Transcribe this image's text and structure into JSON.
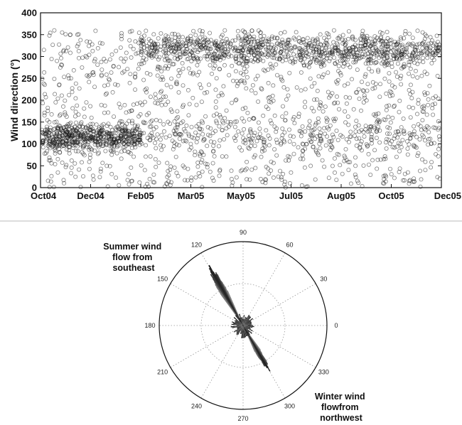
{
  "chart_data": [
    {
      "type": "scatter",
      "title": "",
      "xlabel": "",
      "ylabel": "Wind direction (°)",
      "ylim": [
        0,
        400
      ],
      "yticks": [
        0,
        50,
        100,
        150,
        200,
        250,
        300,
        350,
        400
      ],
      "xticks": [
        "Oct04",
        "Dec04",
        "Feb05",
        "Mar05",
        "May05",
        "Jul05",
        "Aug05",
        "Oct05",
        "Dec05"
      ],
      "marker": "open-circle",
      "marker_color": "#1a1a1a",
      "grid": false,
      "clusters": [
        {
          "x_start": "Oct04",
          "x_end": "Feb05",
          "center_deg": 115,
          "spread_deg": 15
        },
        {
          "x_start": "Feb05",
          "x_end": "Dec05",
          "center_deg": 315,
          "spread_deg": 18
        },
        {
          "x_start": "Feb05",
          "x_end": "Dec05",
          "center_deg": 120,
          "spread_deg": 25
        },
        {
          "x_start": "Oct04",
          "x_end": "Dec05",
          "center_deg": 200,
          "spread_deg": 80
        }
      ]
    },
    {
      "type": "polar-rose",
      "title": "",
      "angle_ticks": [
        "90",
        "60",
        "30",
        "0",
        "330",
        "300",
        "270",
        "240",
        "210",
        "180",
        "150",
        "120"
      ],
      "petals": [
        {
          "direction_deg": 120,
          "relative_length": 1.0,
          "direction_label": "Summer wind flow from southeast"
        },
        {
          "direction_deg": 300,
          "relative_length": 0.75,
          "direction_label": "Winter wind flow from northwest"
        }
      ],
      "petal_color": "#2b2b2b",
      "annotations": [
        {
          "id": "summer",
          "lines": [
            "Summer wind",
            "flow from",
            "southeast"
          ]
        },
        {
          "id": "winter",
          "lines": [
            "Winter wind",
            "flowfrom",
            "northwest"
          ]
        }
      ]
    }
  ]
}
